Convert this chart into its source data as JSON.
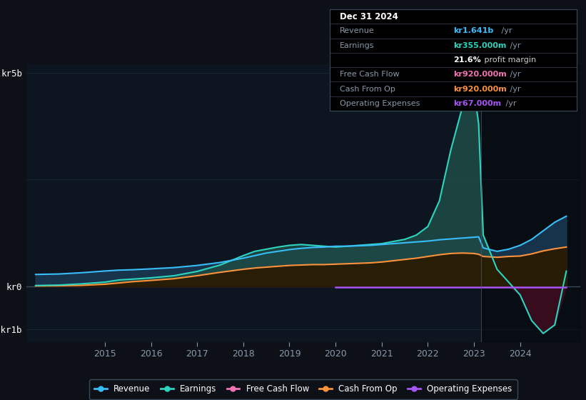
{
  "bg_color": "#0d1117",
  "plot_bg_color": "#0d1520",
  "grid_color": "#1e2d3d",
  "title_date": "Dec 31 2024",
  "years": [
    2013.5,
    2014.0,
    2014.5,
    2015.0,
    2015.3,
    2015.6,
    2016.0,
    2016.5,
    2017.0,
    2017.5,
    2018.0,
    2018.25,
    2018.5,
    2018.75,
    2019.0,
    2019.25,
    2019.5,
    2019.75,
    2020.0,
    2020.25,
    2020.5,
    2020.75,
    2021.0,
    2021.25,
    2021.5,
    2021.75,
    2022.0,
    2022.25,
    2022.5,
    2022.75,
    2023.0,
    2023.1,
    2023.2,
    2023.5,
    2023.75,
    2024.0,
    2024.25,
    2024.5,
    2024.75,
    2025.0
  ],
  "revenue": [
    280,
    290,
    320,
    360,
    380,
    390,
    410,
    440,
    490,
    560,
    660,
    720,
    780,
    820,
    860,
    890,
    910,
    920,
    940,
    940,
    950,
    960,
    980,
    1000,
    1020,
    1040,
    1060,
    1090,
    1110,
    1130,
    1150,
    1160,
    900,
    820,
    870,
    960,
    1100,
    1300,
    1500,
    1641
  ],
  "earnings": [
    20,
    30,
    60,
    100,
    150,
    170,
    200,
    250,
    350,
    500,
    720,
    820,
    870,
    920,
    960,
    980,
    960,
    940,
    920,
    940,
    960,
    980,
    1000,
    1050,
    1100,
    1200,
    1400,
    2000,
    3200,
    4200,
    4600,
    3800,
    1200,
    400,
    100,
    -200,
    -800,
    -1100,
    -900,
    355
  ],
  "cash_from_op": [
    10,
    15,
    25,
    50,
    80,
    110,
    140,
    180,
    250,
    330,
    400,
    430,
    450,
    470,
    490,
    500,
    510,
    510,
    520,
    530,
    540,
    550,
    570,
    600,
    630,
    660,
    700,
    740,
    770,
    780,
    770,
    750,
    700,
    680,
    700,
    710,
    760,
    830,
    880,
    920
  ],
  "operating_expenses": [
    -20,
    -20,
    -20,
    -20,
    -20,
    -20,
    -20,
    -20,
    -20,
    -20,
    -20,
    -20,
    -20,
    -20,
    -20,
    -20,
    -20,
    -20,
    -20,
    -20,
    -20,
    -20,
    -20,
    -20,
    -20,
    -20,
    -20,
    -20,
    -20,
    -20,
    -20,
    -20,
    -20,
    -20,
    -20,
    -20,
    -20,
    -20,
    -20,
    67
  ],
  "op_exp_start_year": 2020.0,
  "ylim_min": -1300,
  "ylim_max": 5200,
  "ytick_vals": [
    -1000,
    0,
    5000
  ],
  "ytick_labels": [
    "-kr1b",
    "kr0",
    "kr5b"
  ],
  "xtick_years": [
    2015,
    2016,
    2017,
    2018,
    2019,
    2020,
    2021,
    2022,
    2023,
    2024
  ],
  "xlim_min": 2013.3,
  "xlim_max": 2025.3,
  "shade_start": 2023.15,
  "revenue_color": "#38bdf8",
  "earnings_color": "#2dd4bf",
  "earnings_fill_color": "#1d4a45",
  "earnings_neg_fill_color": "#3d0d20",
  "revenue_fill_color": "#1a3a55",
  "cash_from_op_color": "#fb923c",
  "cash_from_op_fill": "#2a1a00",
  "operating_expenses_color": "#a855f7",
  "free_cash_flow_color": "#f472b6",
  "legend_items": [
    {
      "label": "Revenue",
      "color": "#38bdf8",
      "marker": "o"
    },
    {
      "label": "Earnings",
      "color": "#2dd4bf",
      "marker": "o"
    },
    {
      "label": "Free Cash Flow",
      "color": "#f472b6",
      "marker": "o"
    },
    {
      "label": "Cash From Op",
      "color": "#fb923c",
      "marker": "o"
    },
    {
      "label": "Operating Expenses",
      "color": "#a855f7",
      "marker": "o"
    }
  ],
  "info_rows": [
    {
      "label": "Dec 31 2024",
      "value": "",
      "label_color": "#ffffff",
      "value_color": "#ffffff",
      "is_title": true
    },
    {
      "label": "Revenue",
      "value": "kr1.641b",
      "suffix": " /yr",
      "label_color": "#8899aa",
      "value_color": "#38bdf8",
      "is_title": false
    },
    {
      "label": "Earnings",
      "value": "kr355.000m",
      "suffix": " /yr",
      "label_color": "#8899aa",
      "value_color": "#2dd4bf",
      "is_title": false
    },
    {
      "label": "",
      "value": "21.6%",
      "suffix": " profit margin",
      "label_color": "",
      "value_color": "#ffffff",
      "is_title": false,
      "bold_value": true
    },
    {
      "label": "Free Cash Flow",
      "value": "kr920.000m",
      "suffix": " /yr",
      "label_color": "#8899aa",
      "value_color": "#f472b6",
      "is_title": false
    },
    {
      "label": "Cash From Op",
      "value": "kr920.000m",
      "suffix": " /yr",
      "label_color": "#8899aa",
      "value_color": "#fb923c",
      "is_title": false
    },
    {
      "label": "Operating Expenses",
      "value": "kr67.000m",
      "suffix": " /yr",
      "label_color": "#8899aa",
      "value_color": "#a855f7",
      "is_title": false
    }
  ]
}
